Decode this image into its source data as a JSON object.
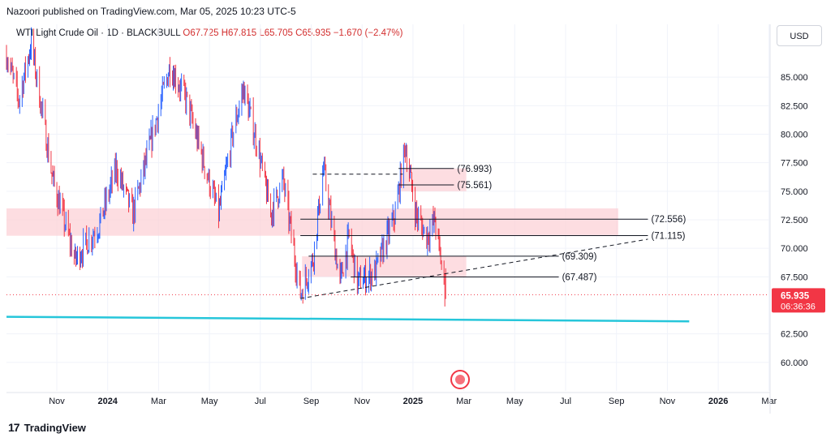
{
  "header": {
    "published": "Nazoori published on TradingView.com, Mar 05, 2025 10:23 UTC-5",
    "symbol": "WTI Light Crude Oil · 1D · BLACKBULL",
    "ohlc": "O67.725  H67.815  L65.705  C65.935  −1.670 (−2.47%)",
    "currency": "USD"
  },
  "footer": {
    "brand": "TradingView"
  },
  "colors": {
    "up": "#2962ff",
    "down": "#f23645",
    "zone": "#fccfd4",
    "ma": "#26c6da",
    "price_badge": "#f23645"
  },
  "chart_data": {
    "type": "candlestick",
    "title": "WTI Light Crude Oil · 1D · BLACKBULL",
    "y_axis": {
      "ticks": [
        "85.000",
        "82.500",
        "80.000",
        "77.500",
        "75.000",
        "72.500",
        "70.000",
        "67.500",
        "62.500",
        "60.000"
      ],
      "tick_values": [
        85,
        82.5,
        80,
        77.5,
        75,
        72.5,
        70,
        67.5,
        62.5,
        60
      ],
      "range": [
        57.5,
        87.5
      ]
    },
    "x_axis": {
      "ticks": [
        "Nov",
        "2024",
        "Mar",
        "May",
        "Jul",
        "Sep",
        "Nov",
        "2025",
        "Mar",
        "May",
        "Jul",
        "Sep",
        "Nov",
        "2026",
        "Mar"
      ],
      "bold_ticks": [
        "2024",
        "2025",
        "2026"
      ],
      "range": [
        "2023-09-20",
        "2026-04-01"
      ]
    },
    "price_path": [
      [
        "2023-09-20",
        87
      ],
      [
        "2023-10-05",
        83
      ],
      [
        "2023-10-20",
        88
      ],
      [
        "2023-11-15",
        76
      ],
      [
        "2023-12-12",
        69
      ],
      [
        "2024-01-10",
        72
      ],
      [
        "2024-01-31",
        77
      ],
      [
        "2024-02-20",
        73
      ],
      [
        "2024-03-15",
        80
      ],
      [
        "2024-04-05",
        86
      ],
      [
        "2024-04-25",
        83
      ],
      [
        "2024-05-10",
        79
      ],
      [
        "2024-06-03",
        73
      ],
      [
        "2024-06-20",
        80
      ],
      [
        "2024-07-03",
        84
      ],
      [
        "2024-07-20",
        79
      ],
      [
        "2024-08-05",
        73
      ],
      [
        "2024-08-20",
        76
      ],
      [
        "2024-09-10",
        66
      ],
      [
        "2024-09-25",
        69
      ],
      [
        "2024-10-08",
        77
      ],
      [
        "2024-10-28",
        67
      ],
      [
        "2024-11-08",
        71
      ],
      [
        "2024-11-18",
        67
      ],
      [
        "2024-12-10",
        68
      ],
      [
        "2025-01-03",
        73
      ],
      [
        "2025-01-15",
        79
      ],
      [
        "2025-01-28",
        73
      ],
      [
        "2025-02-10",
        71
      ],
      [
        "2025-02-20",
        72.5
      ],
      [
        "2025-03-05",
        65.935
      ]
    ],
    "last_close": 65.935,
    "price_label": "65.935",
    "countdown": "06:36:36",
    "levels": [
      {
        "label": "(76.993)",
        "value": 76.993,
        "x1": "2025-01-07",
        "x2": "2025-03-15",
        "style": "solid"
      },
      {
        "label": "(75.561)",
        "value": 75.561,
        "x1": "2025-01-07",
        "x2": "2025-03-15",
        "style": "solid"
      },
      {
        "label": "(72.556)",
        "value": 72.556,
        "x1": "2024-09-10",
        "x2": "2025-11-05",
        "style": "solid"
      },
      {
        "label": "(71.115)",
        "value": 71.115,
        "x1": "2024-09-10",
        "x2": "2025-11-05",
        "style": "solid"
      },
      {
        "label": "(69.309)",
        "value": 69.309,
        "x1": "2024-09-20",
        "x2": "2025-07-20",
        "style": "solid"
      },
      {
        "label": "(67.487)",
        "value": 67.487,
        "x1": "2024-11-10",
        "x2": "2025-07-20",
        "style": "solid"
      }
    ],
    "dashed_lines": [
      {
        "x1": "2024-09-25",
        "y1": 76.5,
        "x2": "2025-01-12",
        "y2": 76.5
      },
      {
        "x1": "2024-09-10",
        "y1": 65.6,
        "x2": "2025-11-05",
        "y2": 70.8
      }
    ],
    "zones": [
      {
        "x1": "2023-09-20",
        "x2": "2025-09-30",
        "y1": 71.1,
        "y2": 73.5
      },
      {
        "x1": "2025-01-10",
        "x2": "2025-03-30",
        "y1": 75.0,
        "y2": 77.0
      },
      {
        "x1": "2024-09-12",
        "x2": "2025-03-30",
        "y1": 67.5,
        "y2": 69.3
      }
    ],
    "moving_average": [
      [
        "2023-09-20",
        64.0
      ],
      [
        "2025-12-25",
        63.6
      ]
    ],
    "grid": true
  }
}
